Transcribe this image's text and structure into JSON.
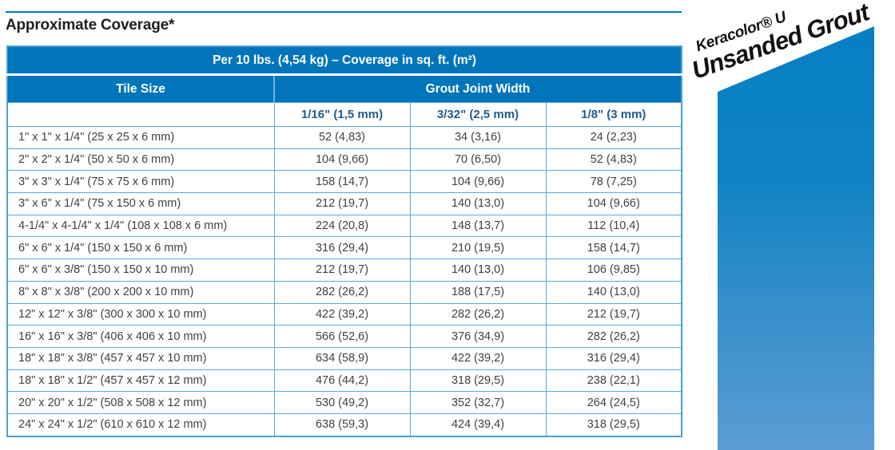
{
  "page": {
    "title": "Approximate Coverage*"
  },
  "banner": {
    "line1": "Keracolor® U",
    "line2": "Unsanded Grout"
  },
  "colors": {
    "header_blue": "#0075BB",
    "grid_blue": "#5BA9DB",
    "subheader_text_blue": "#1E5C8E",
    "body_text": "#414042",
    "banner_gradient_top": "#0680C3",
    "banner_gradient_bottom": "#5B9CD4"
  },
  "table": {
    "span_header": "Per 10 lbs. (4,54 kg) – Coverage in sq. ft. (m²)",
    "tile_size_header": "Tile Size",
    "joint_width_header": "Grout Joint Width",
    "joint_columns": [
      "1/16\" (1,5 mm)",
      "3/32\" (2,5 mm)",
      "1/8\" (3 mm)"
    ],
    "rows": [
      {
        "tile_size": "1\" x 1\" x 1/4\" (25 x 25 x 6 mm)",
        "values": [
          "52 (4,83)",
          "34 (3,16)",
          "24 (2,23)"
        ]
      },
      {
        "tile_size": "2\" x 2\" x 1/4\" (50 x 50 x 6 mm)",
        "values": [
          "104 (9,66)",
          "70 (6,50)",
          "52 (4,83)"
        ]
      },
      {
        "tile_size": "3\" x 3\" x 1/4\" (75 x 75 x 6 mm)",
        "values": [
          "158 (14,7)",
          "104 (9,66)",
          "78 (7,25)"
        ]
      },
      {
        "tile_size": "3\" x 6\" x 1/4\" (75 x 150 x 6 mm)",
        "values": [
          "212 (19,7)",
          "140 (13,0)",
          "104 (9,66)"
        ]
      },
      {
        "tile_size": "4-1/4\" x 4-1/4\" x 1/4\" (108 x 108 x 6 mm)",
        "values": [
          "224 (20,8)",
          "148 (13,7)",
          "112 (10,4)"
        ]
      },
      {
        "tile_size": "6\" x 6\" x 1/4\" (150 x 150 x 6 mm)",
        "values": [
          "316 (29,4)",
          "210 (19,5)",
          "158 (14,7)"
        ]
      },
      {
        "tile_size": "6\" x 6\" x 3/8\" (150 x 150 x 10 mm)",
        "values": [
          "212 (19,7)",
          "140 (13,0)",
          "106 (9,85)"
        ]
      },
      {
        "tile_size": "8\" x 8\" x 3/8\" (200 x 200 x 10 mm)",
        "values": [
          "282 (26,2)",
          "188 (17,5)",
          "140 (13,0)"
        ]
      },
      {
        "tile_size": "12\" x 12\" x 3/8\" (300 x 300 x 10 mm)",
        "values": [
          "422 (39,2)",
          "282 (26,2)",
          "212 (19,7)"
        ]
      },
      {
        "tile_size": "16\" x 16\" x 3/8\" (406 x 406 x 10 mm)",
        "values": [
          "566 (52,6)",
          "376 (34,9)",
          "282 (26,2)"
        ]
      },
      {
        "tile_size": "18\" x 18\" x 3/8\" (457 x 457 x 10 mm)",
        "values": [
          "634 (58,9)",
          "422 (39,2)",
          "316 (29,4)"
        ]
      },
      {
        "tile_size": "18\" x 18\" x 1/2\" (457 x 457 x 12 mm)",
        "values": [
          "476 (44,2)",
          "318 (29,5)",
          "238 (22,1)"
        ]
      },
      {
        "tile_size": "20\" x 20\" x 1/2\" (508 x 508 x 12 mm)",
        "values": [
          "530 (49,2)",
          "352 (32,7)",
          "264 (24,5)"
        ]
      },
      {
        "tile_size": "24\" x 24\" x 1/2\" (610 x 610 x 12 mm)",
        "values": [
          "638 (59,3)",
          "424 (39,4)",
          "318 (29,5)"
        ]
      }
    ]
  }
}
